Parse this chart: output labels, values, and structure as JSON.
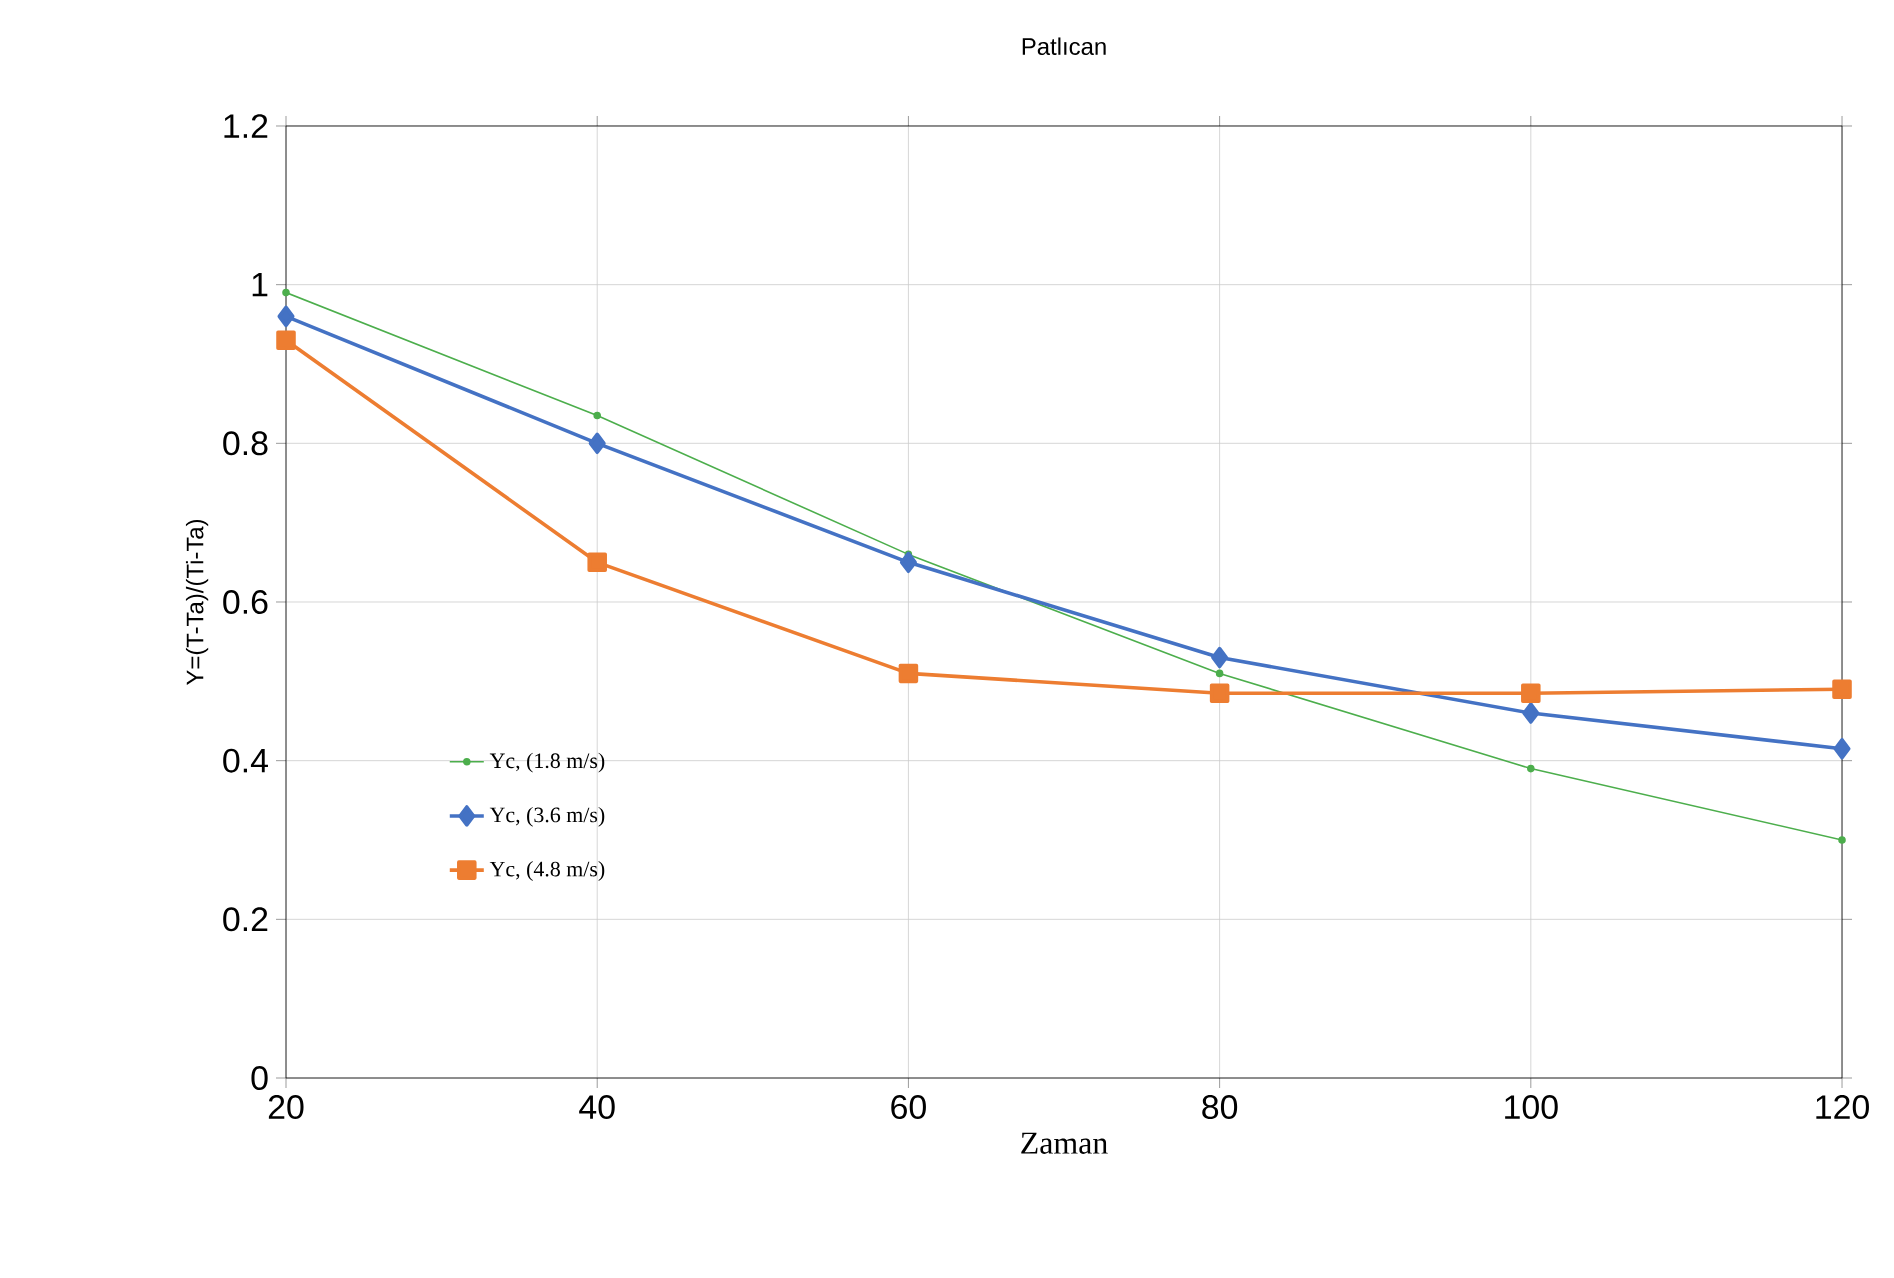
{
  "chart_data": {
    "type": "line",
    "title": "Patlıcan",
    "xlabel": "Zaman",
    "ylabel": "Y=(T-Ta)/(Ti-Ta)",
    "x": [
      20,
      40,
      60,
      80,
      100,
      120
    ],
    "series": [
      {
        "name": "Yc, (1.8 m/s)",
        "color": "#4cae4c",
        "marker": "circle",
        "values": [
          0.99,
          0.835,
          0.66,
          0.51,
          0.39,
          0.3
        ]
      },
      {
        "name": "Yc,  (3.6 m/s)",
        "color": "#4472c4",
        "marker": "diamond",
        "values": [
          0.96,
          0.8,
          0.65,
          0.53,
          0.46,
          0.415
        ]
      },
      {
        "name": "Yc, (4.8 m/s)",
        "color": "#ed7d31",
        "marker": "square",
        "values": [
          0.93,
          0.65,
          0.51,
          0.485,
          0.485,
          0.49
        ]
      }
    ],
    "xlim": [
      20,
      120
    ],
    "xticks": [
      20,
      40,
      60,
      80,
      100,
      120
    ],
    "ylim": [
      0,
      1.2
    ],
    "yticks": [
      0,
      0.2,
      0.4,
      0.6,
      0.8,
      1,
      1.2
    ],
    "grid": true,
    "legend": "bottom left",
    "line_style": "solid"
  }
}
